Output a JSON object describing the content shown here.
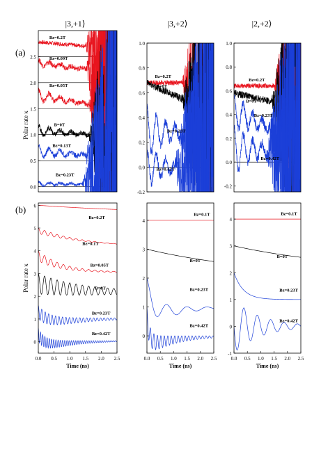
{
  "figure": {
    "panel_a_label": "(a)",
    "panel_b_label": "(b)",
    "ylabel": "Polar rate κ",
    "xlabel": "Time (ns)",
    "column_titles": [
      "|3,+1⟩",
      "|3,+2⟩",
      "|2,+2⟩"
    ]
  },
  "colors": {
    "red": "#e8141e",
    "black": "#000000",
    "blue": "#1b3fd8",
    "axis": "#000000"
  },
  "chart_data": [
    {
      "id": "a1",
      "type": "line",
      "panel": "(a)",
      "column_title": "|3,+1⟩",
      "xlim": [
        0,
        2.5
      ],
      "ylim": [
        -0.1,
        3.0
      ],
      "yticks": [
        0.0,
        0.5,
        1.0,
        1.5,
        2.0,
        2.5
      ],
      "xticks": [],
      "hlines": [
        0.0,
        0.5,
        1.0,
        1.5,
        2.0,
        2.5
      ],
      "series": [
        {
          "name": "Bz=0.2T",
          "color": "red",
          "style": "noisy",
          "base": 2.78,
          "drift": -0.05,
          "noise": 0.04,
          "grow_from": 1.5
        },
        {
          "name": "Bz=0.09T",
          "color": "red",
          "style": "noisy",
          "base": 2.38,
          "drift": -0.08,
          "noise": 0.05,
          "osc": 0.06,
          "grow_from": 1.5
        },
        {
          "name": "Bz=0.05T",
          "color": "red",
          "style": "noisy",
          "base": 1.75,
          "drift": -0.1,
          "noise": 0.05,
          "osc": 0.12,
          "grow_from": 1.6
        },
        {
          "name": "B=0T",
          "color": "black",
          "style": "noisy",
          "base": 1.08,
          "drift": -0.05,
          "noise": 0.05,
          "osc": 0.1,
          "grow_from": 1.6
        },
        {
          "name": "Bz=0.13T",
          "color": "blue",
          "style": "noisy",
          "base": 0.68,
          "drift": -0.05,
          "noise": 0.05,
          "osc": 0.12,
          "grow_from": 1.5
        },
        {
          "name": "Bz=0.23T",
          "color": "blue",
          "style": "noisy",
          "base": 0.05,
          "drift": 0,
          "noise": 0.03,
          "osc": 0.04,
          "grow_from": 1.4
        }
      ],
      "labels": [
        {
          "text": "Bz=0.2T",
          "x": 0.35,
          "y": 2.84
        },
        {
          "text": "Bz=0.09T",
          "x": 0.35,
          "y": 2.44
        },
        {
          "text": "Bz=0.05T",
          "x": 0.35,
          "y": 1.92
        },
        {
          "text": "B=0T",
          "x": 0.5,
          "y": 1.16
        },
        {
          "text": "Bz=0.13T",
          "x": 0.45,
          "y": 0.76
        },
        {
          "text": "Bz=0.23T",
          "x": 0.55,
          "y": 0.2
        }
      ]
    },
    {
      "id": "a2",
      "type": "line",
      "panel": "(a)",
      "column_title": "|3,+2⟩",
      "xlim": [
        0,
        2.5
      ],
      "ylim": [
        -0.2,
        1.0
      ],
      "yticks": [
        -0.2,
        0.0,
        0.2,
        0.4,
        0.6,
        0.8,
        1.0
      ],
      "xticks": [],
      "hlines": [
        0.0
      ],
      "series": [
        {
          "name": "Bz=0.2T",
          "color": "red",
          "style": "noisy",
          "base": 0.68,
          "drift": 0,
          "noise": 0.02,
          "grow_from": 1.3
        },
        {
          "name": "B=0T",
          "color": "black",
          "style": "noisy",
          "base": 0.68,
          "drift": -0.1,
          "noise": 0.03,
          "grow_from": 1.3
        },
        {
          "name": "Bz=0.23T",
          "color": "blue",
          "style": "noisy",
          "base": 0.28,
          "drift": 0,
          "noise": 0.04,
          "osc": 0.2,
          "grow_from": 1.2
        },
        {
          "name": "Bz=0.42T",
          "color": "blue",
          "style": "noisy",
          "base": 0.0,
          "drift": 0,
          "noise": 0.04,
          "osc": 0.15,
          "grow_from": 1.0
        }
      ],
      "labels": [
        {
          "text": "Bz=0.2T",
          "x": 0.3,
          "y": 0.72
        },
        {
          "text": "B=0T",
          "x": 0.35,
          "y": 0.64
        },
        {
          "text": "Bz=0.23T",
          "x": 0.75,
          "y": 0.28
        },
        {
          "text": "Bz=0.42T",
          "x": 0.35,
          "y": -0.03
        }
      ]
    },
    {
      "id": "a3",
      "type": "line",
      "panel": "(a)",
      "column_title": "|2,+2⟩",
      "xlim": [
        0,
        2.5
      ],
      "ylim": [
        -0.25,
        1.0
      ],
      "yticks": [
        -0.2,
        0.0,
        0.2,
        0.4,
        0.6,
        0.8,
        1.0
      ],
      "xticks": [],
      "hlines": [
        0.0
      ],
      "series": [
        {
          "name": "Bz=0.2T",
          "color": "red",
          "style": "noisy",
          "base": 0.64,
          "drift": 0,
          "noise": 0.02,
          "grow_from": 1.5
        },
        {
          "name": "B=0T",
          "color": "black",
          "style": "noisy",
          "base": 0.58,
          "drift": -0.05,
          "noise": 0.03,
          "grow_from": 1.4
        },
        {
          "name": "Bz=0.23T",
          "color": "blue",
          "style": "noisy",
          "base": 0.42,
          "drift": -0.1,
          "noise": 0.04,
          "osc": 0.15,
          "grow_from": 1.3
        },
        {
          "name": "Bz=0.42T",
          "color": "blue",
          "style": "noisy",
          "base": 0.1,
          "drift": 0,
          "noise": 0.04,
          "osc": 0.2,
          "grow_from": 1.2
        }
      ],
      "labels": [
        {
          "text": "Bz=0.2T",
          "x": 0.55,
          "y": 0.68
        },
        {
          "text": "B=0T",
          "x": 0.45,
          "y": 0.5
        },
        {
          "text": "Bz=0.23T",
          "x": 0.75,
          "y": 0.38
        },
        {
          "text": "Bz=0.42T",
          "x": 1.0,
          "y": 0.02
        }
      ]
    },
    {
      "id": "b1",
      "type": "line",
      "panel": "(b)",
      "xlim": [
        0,
        2.5
      ],
      "ylim": [
        -0.5,
        6.1
      ],
      "yticks": [
        0,
        1,
        2,
        3,
        4,
        5,
        6
      ],
      "xticks": [
        0.0,
        0.5,
        1.0,
        1.5,
        2.0,
        2.5
      ],
      "xlabel": "Time (ns)",
      "series": [
        {
          "name": "Bz=0.2T",
          "color": "red",
          "style": "decay",
          "start": 6.0,
          "end": 5.6,
          "tau": 4,
          "amp": 0.0,
          "period": 0.2
        },
        {
          "name": "Bz=0.1T",
          "color": "red",
          "style": "decay",
          "start": 5.0,
          "end": 4.15,
          "tau": 1.5,
          "amp": 0.25,
          "period": 0.2
        },
        {
          "name": "Bz=0.05T",
          "color": "red",
          "style": "decay",
          "start": 4.0,
          "end": 3.05,
          "tau": 0.8,
          "amp": 0.45,
          "period": 0.2
        },
        {
          "name": "B=0T",
          "color": "black",
          "style": "decay",
          "start": 3.0,
          "end": 2.2,
          "tau": 1.4,
          "amp": 0.9,
          "period": 0.2,
          "damp": 2.0
        },
        {
          "name": "Bz=0.23T",
          "color": "blue",
          "style": "decay",
          "start": 1.6,
          "end": 1.05,
          "tau": 0.3,
          "amp": 0.6,
          "period": 0.11,
          "damp": 1.3
        },
        {
          "name": "Bz=0.42T",
          "color": "blue",
          "style": "decay",
          "start": 0.6,
          "end": 0.05,
          "tau": 0.2,
          "amp": 0.6,
          "period": 0.07,
          "damp": 1.0
        }
      ],
      "labels": [
        {
          "text": "Bz=0.2T",
          "x": 1.6,
          "y": 5.4
        },
        {
          "text": "Bz=0.1T",
          "x": 1.4,
          "y": 4.25
        },
        {
          "text": "Bz=0.05T",
          "x": 1.65,
          "y": 3.3
        },
        {
          "text": "B=0T",
          "x": 1.8,
          "y": 2.3
        },
        {
          "text": "Bz=0.23T",
          "x": 1.7,
          "y": 1.2
        },
        {
          "text": "Bz=0.42T",
          "x": 1.7,
          "y": 0.3
        }
      ]
    },
    {
      "id": "b2",
      "type": "line",
      "panel": "(b)",
      "xlim": [
        0,
        2.5
      ],
      "ylim": [
        -0.6,
        4.6
      ],
      "yticks": [
        0,
        1,
        2,
        3,
        4
      ],
      "xticks": [
        0.0,
        0.5,
        1.0,
        1.5,
        2.0,
        2.5
      ],
      "xlabel": "Time (ns)",
      "series": [
        {
          "name": "Bz=0.1T",
          "color": "red",
          "style": "decay",
          "start": 4.0,
          "end": 4.0,
          "tau": 1,
          "amp": 0,
          "period": 1
        },
        {
          "name": "B=0T",
          "color": "black",
          "style": "decay",
          "start": 3.0,
          "end": 2.0,
          "tau": 4.5,
          "amp": 0,
          "period": 1
        },
        {
          "name": "Bz=0.23T",
          "color": "blue",
          "style": "decay",
          "start": 2.0,
          "end": 1.0,
          "tau": 0.3,
          "amp": 0.9,
          "period": 0.75,
          "damp": 1.0
        },
        {
          "name": "Bz=0.42T",
          "color": "blue",
          "style": "decay",
          "start": 1.0,
          "end": 0.0,
          "tau": 0.1,
          "amp": 0.7,
          "period": 0.13,
          "damp": 1.1
        }
      ],
      "labels": [
        {
          "text": "Bz=0.1T",
          "x": 1.75,
          "y": 4.15
        },
        {
          "text": "B=0T",
          "x": 1.6,
          "y": 2.55
        },
        {
          "text": "Bz=0.23T",
          "x": 1.6,
          "y": 1.55
        },
        {
          "text": "Bz=0.42T",
          "x": 1.6,
          "y": 0.3
        }
      ]
    },
    {
      "id": "b3",
      "type": "line",
      "panel": "(b)",
      "xlim": [
        0,
        2.5
      ],
      "ylim": [
        -1.0,
        4.6
      ],
      "yticks": [
        -1,
        0,
        1,
        2,
        3,
        4
      ],
      "xticks": [
        0.0,
        0.5,
        1.0,
        1.5,
        2.0,
        2.5
      ],
      "xlabel": "Time (ns)",
      "series": [
        {
          "name": "Bz=0.1T",
          "color": "red",
          "style": "decay",
          "start": 4.0,
          "end": 4.0,
          "tau": 1,
          "amp": 0,
          "period": 1
        },
        {
          "name": "B=0T",
          "color": "black",
          "style": "decay",
          "start": 3.0,
          "end": 2.0,
          "tau": 4.5,
          "amp": 0,
          "period": 1
        },
        {
          "name": "Bz=0.23T",
          "color": "blue",
          "style": "decay",
          "start": 2.0,
          "end": 1.0,
          "tau": 0.35,
          "amp": 0,
          "period": 1
        },
        {
          "name": "Bz=0.42T",
          "color": "blue",
          "style": "decay",
          "start": 0.0,
          "end": 0.0,
          "tau": 1,
          "amp": 2.0,
          "period": 0.5,
          "damp": 1.0
        }
      ],
      "labels": [
        {
          "text": "Bz=0.1T",
          "x": 1.75,
          "y": 4.15
        },
        {
          "text": "B=0T",
          "x": 1.6,
          "y": 2.55
        },
        {
          "text": "Bz=0.23T",
          "x": 1.7,
          "y": 1.3
        },
        {
          "text": "Bz=0.42T",
          "x": 1.7,
          "y": 0.15
        }
      ]
    }
  ]
}
